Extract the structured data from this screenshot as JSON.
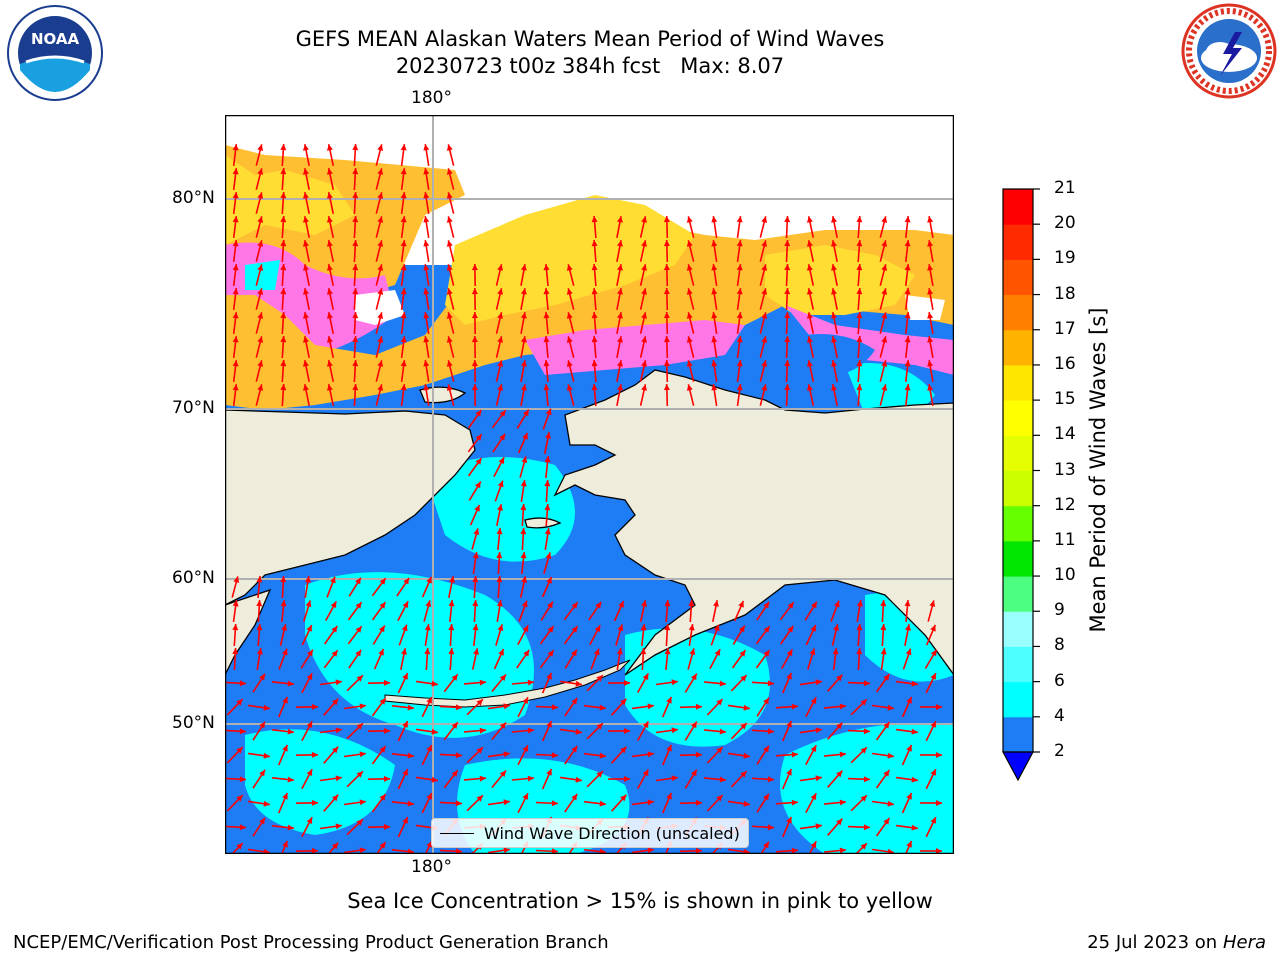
{
  "title": {
    "line1": "GEFS MEAN Alaskan Waters Mean Period of Wind Waves",
    "line2": "20230723 t00z 384h fcst   Max: 8.07"
  },
  "logos": {
    "left": {
      "name": "NOAA",
      "text": "NOAA"
    },
    "right": {
      "name": "National Weather Service"
    }
  },
  "map": {
    "lon_labels": {
      "top": "180°",
      "bottom": "180°"
    },
    "lat_labels": [
      "80°N",
      "70°N",
      "60°N",
      "50°N"
    ],
    "legend": "Wind Wave Direction (unscaled)",
    "ocean_color": "#1e7cf5",
    "cyan_color": "#00ffff",
    "land_color": "#eeeddc",
    "ice_colors": [
      "#ffdd33",
      "#ffbf33",
      "#ff77e6",
      "#ff33ff"
    ],
    "arrow_color": "#ff0000"
  },
  "colorbar": {
    "ticks": [
      "2",
      "4",
      "6",
      "8",
      "9",
      "10",
      "11",
      "12",
      "13",
      "14",
      "15",
      "16",
      "17",
      "18",
      "19",
      "20",
      "21"
    ],
    "colors": [
      "#0000ff",
      "#1e7cf5",
      "#00ffff",
      "#4dffff",
      "#99ffff",
      "#4dff80",
      "#00e600",
      "#66ff00",
      "#ccff00",
      "#e6ff00",
      "#ffff00",
      "#ffe600",
      "#ffb300",
      "#ff8000",
      "#ff5500",
      "#ff2a00",
      "#ff0000"
    ],
    "label": "Mean Period of Wind Waves [s]"
  },
  "note": "Sea Ice Concentration > 15% is shown in pink to yellow",
  "footer": {
    "left": "NCEP/EMC/Verification Post Processing Product Generation Branch",
    "right_date": "25 Jul 2023 on",
    "right_machine": "Hera"
  }
}
